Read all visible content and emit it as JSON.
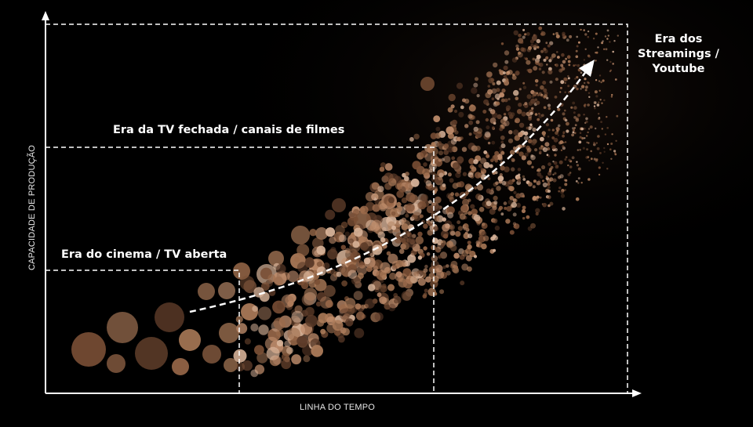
{
  "axes": {
    "y_label": "CAPACIDADE DE PRODUÇÃO",
    "x_label": "LINHA DO TEMPO"
  },
  "eras": [
    {
      "label": "Era do cinema / TV aberta"
    },
    {
      "label": "Era da TV fechada / canais de filmes"
    },
    {
      "label": "Era dos Streamings / Youtube"
    }
  ],
  "colors": {
    "background": "#000000",
    "axis": "#ffffff",
    "dashed_lines": "#ffffff",
    "dot_palette": [
      "#7a4f35",
      "#9b6a4a",
      "#c08d6c",
      "#d9b49a",
      "#5b3a28",
      "#ab7a58"
    ]
  }
}
